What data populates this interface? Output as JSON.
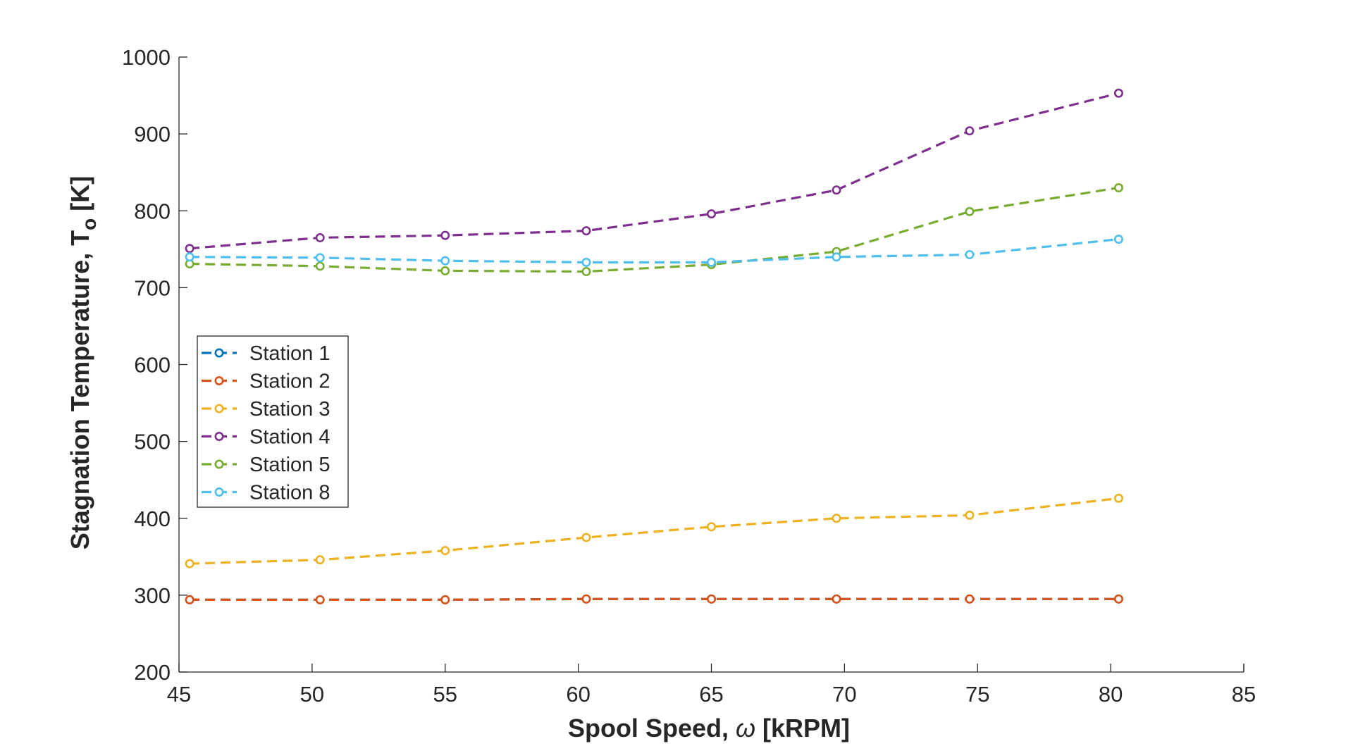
{
  "chart_data": {
    "type": "line",
    "title": "",
    "xlabel": "Spool Speed, ω [kRPM]",
    "xlabel_parts": {
      "main": "Spool Speed, ",
      "symbol": "ω",
      "tail": " [kRPM]"
    },
    "ylabel": "Stagnation Temperature, To [K]",
    "ylabel_parts": {
      "main": "Stagnation Temperature, T",
      "sub": "o",
      "tail": " [K]"
    },
    "xlim": [
      45,
      85
    ],
    "ylim": [
      200,
      1000
    ],
    "xticks": [
      45,
      50,
      55,
      60,
      65,
      70,
      75,
      80,
      85
    ],
    "yticks": [
      200,
      300,
      400,
      500,
      600,
      700,
      800,
      900,
      1000
    ],
    "grid": false,
    "legend_position": "middle-left",
    "line_style": "dashed",
    "marker": "circle",
    "x": [
      45.4,
      50.3,
      55.0,
      60.3,
      65.0,
      69.7,
      74.7,
      80.3
    ],
    "series": [
      {
        "name": "Station 1",
        "color": "#0072BD",
        "values": [
          294,
          294,
          294,
          295,
          295,
          295,
          295,
          295
        ]
      },
      {
        "name": "Station 2",
        "color": "#D95319",
        "values": [
          294,
          294,
          294,
          295,
          295,
          295,
          295,
          295
        ]
      },
      {
        "name": "Station 3",
        "color": "#EDB120",
        "values": [
          341,
          346,
          358,
          375,
          389,
          400,
          404,
          426
        ]
      },
      {
        "name": "Station 4",
        "color": "#7E2F8E",
        "values": [
          751,
          765,
          768,
          774,
          796,
          827,
          904,
          953
        ]
      },
      {
        "name": "Station 5",
        "color": "#77AC30",
        "values": [
          731,
          728,
          722,
          721,
          730,
          747,
          799,
          830
        ]
      },
      {
        "name": "Station 8",
        "color": "#4DBEEE",
        "values": [
          740,
          739,
          735,
          733,
          733,
          740,
          743,
          763
        ]
      }
    ]
  }
}
